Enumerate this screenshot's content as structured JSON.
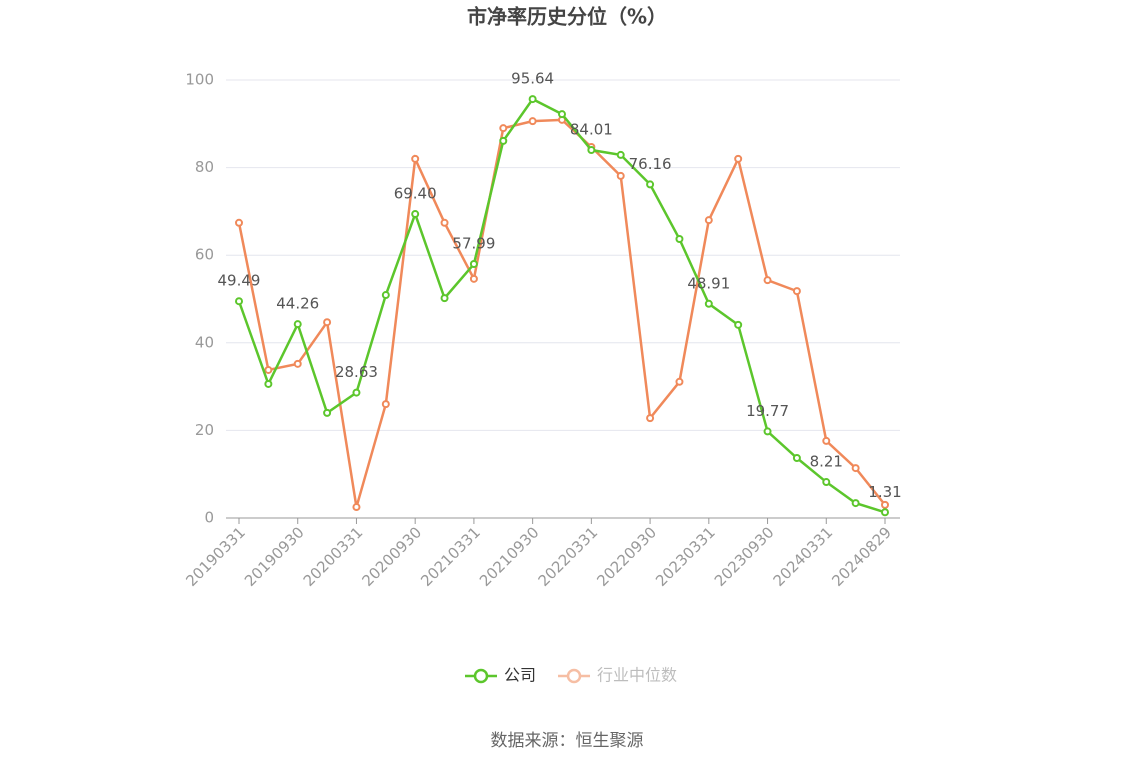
{
  "chart_data": {
    "type": "line",
    "title": "市净率历史分位（%）",
    "categories": [
      "20190331",
      null,
      "20190930",
      null,
      "20200331",
      null,
      "20200930",
      null,
      "20210331",
      null,
      "20210930",
      null,
      "20220331",
      null,
      "20220930",
      null,
      "20230331",
      null,
      "20230930",
      null,
      "20240331",
      null,
      "20240829"
    ],
    "series": [
      {
        "name": "公司",
        "color": "#5cc62c",
        "values": [
          49.49,
          30.6,
          44.26,
          24.0,
          28.63,
          50.9,
          69.4,
          50.2,
          57.99,
          86.1,
          95.64,
          92.2,
          84.01,
          82.9,
          76.16,
          63.7,
          48.91,
          44.1,
          19.77,
          13.7,
          8.21,
          3.4,
          1.31
        ],
        "value_labels": [
          "49.49",
          null,
          "44.26",
          null,
          "28.63",
          null,
          "69.40",
          null,
          "57.99",
          null,
          "95.64",
          null,
          "84.01",
          null,
          "76.16",
          null,
          "48.91",
          null,
          "19.77",
          null,
          "8.21",
          null,
          "1.31"
        ]
      },
      {
        "name": "行业中位数",
        "color": "#f0895a",
        "values": [
          67.4,
          33.8,
          35.2,
          44.7,
          2.5,
          26.0,
          82.0,
          67.4,
          54.6,
          89.0,
          90.6,
          90.9,
          84.7,
          78.1,
          22.8,
          31.1,
          68.0,
          82.0,
          54.3,
          51.8,
          17.6,
          11.4,
          3.0
        ]
      }
    ],
    "ylim": [
      0,
      100
    ],
    "yticks": [
      0,
      20,
      40,
      60,
      80,
      100
    ],
    "grid": true,
    "legend": "bottom",
    "source": "数据来源：恒生聚源"
  }
}
